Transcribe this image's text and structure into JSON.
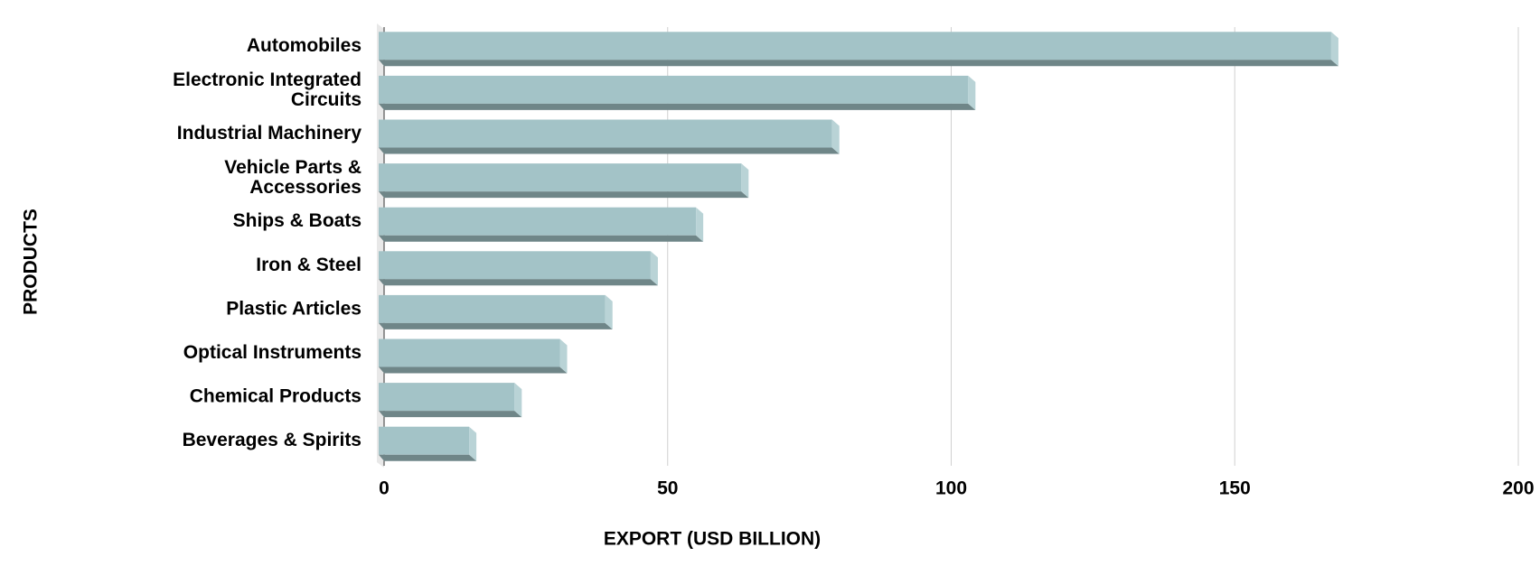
{
  "chart_data": {
    "type": "bar",
    "orientation": "horizontal",
    "x_label": "EXPORT (USD BILLION)",
    "y_label": "PRODUCTS",
    "categories": [
      "Automobiles",
      "Electronic Integrated Circuits",
      "Industrial Machinery",
      "Vehicle Parts & Accessories",
      "Ships & Boats",
      "Iron & Steel",
      "Plastic Articles",
      "Optical Instruments",
      "Chemical Products",
      "Beverages & Spirits"
    ],
    "values": [
      167,
      103,
      79,
      63,
      55,
      47,
      39,
      31,
      23,
      15
    ],
    "color": "#a3c3c7",
    "xlim": [
      0,
      200
    ],
    "xticks": [
      0,
      50,
      100,
      150,
      200
    ],
    "grid": true
  }
}
